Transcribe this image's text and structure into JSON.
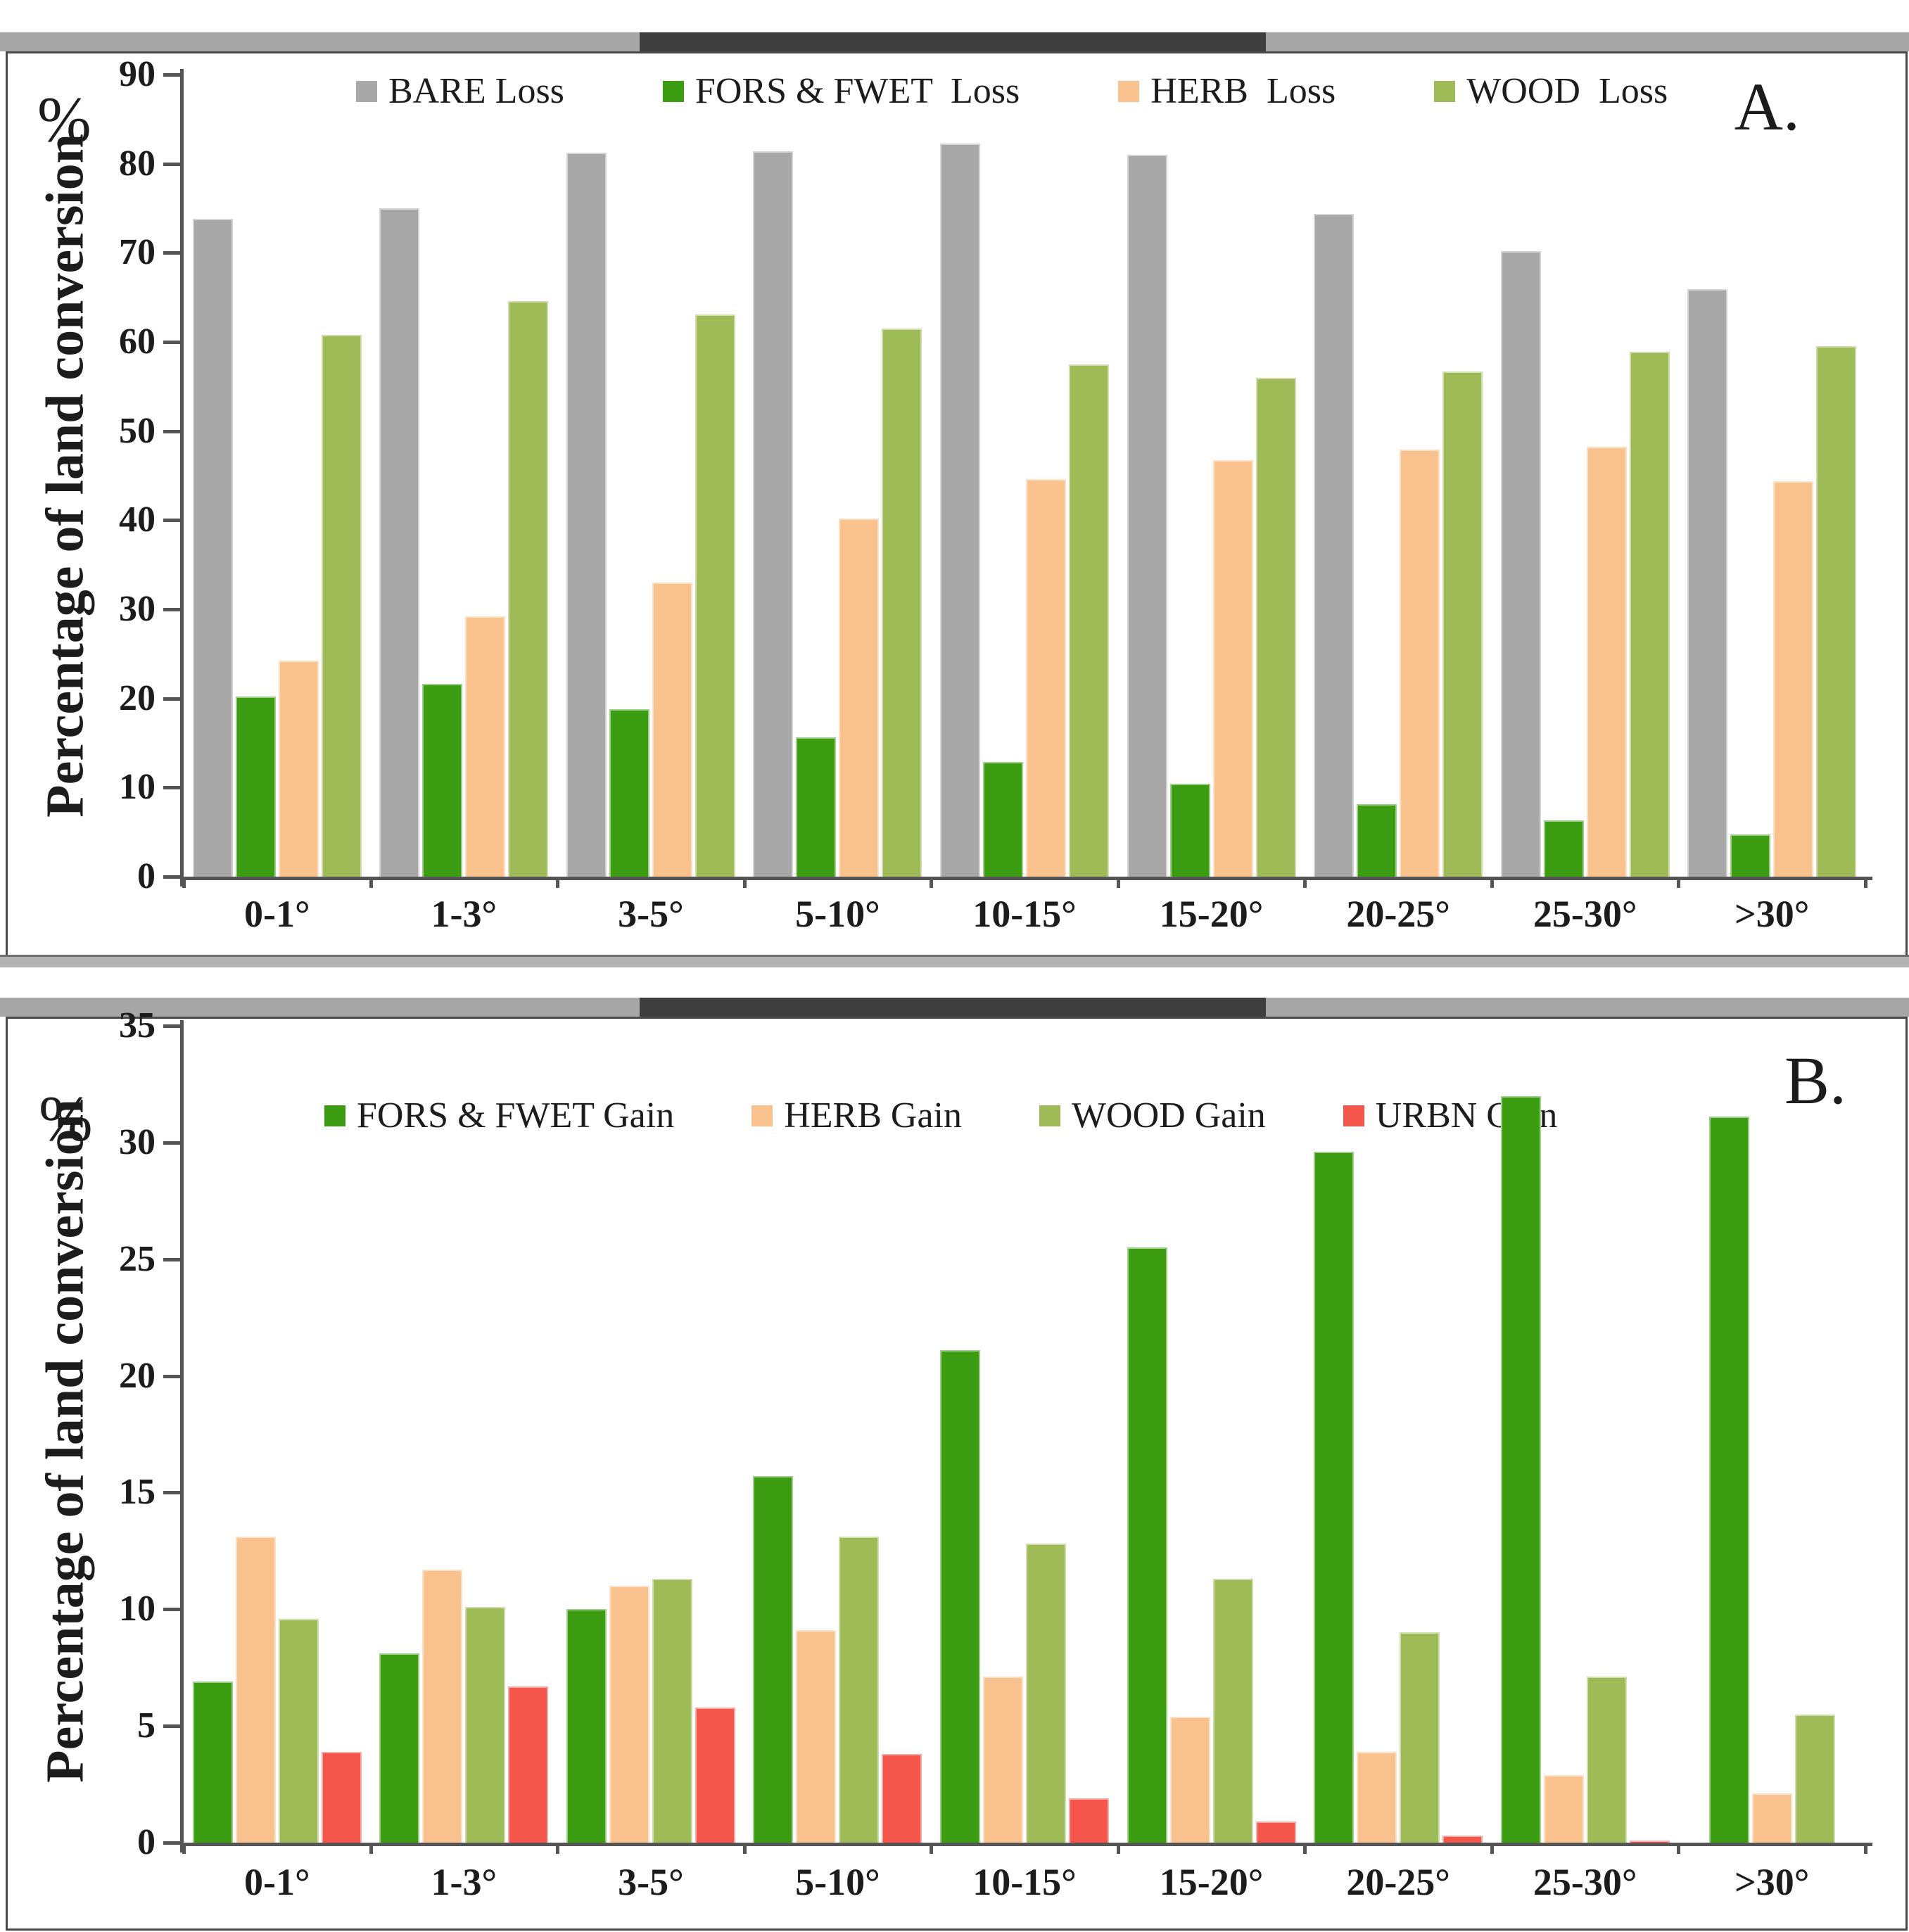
{
  "chart_data": [
    {
      "id": "A",
      "panel_label": "A.",
      "type": "bar",
      "y_unit": "%",
      "ylabel": "Percentage of land conversion",
      "ylim": [
        0,
        90
      ],
      "yticks": [
        0,
        10,
        20,
        30,
        40,
        50,
        60,
        70,
        80,
        90
      ],
      "categories": [
        "0-1°",
        "1-3°",
        "3-5°",
        "5-10°",
        "10-15°",
        "15-20°",
        "20-25°",
        "25-30°",
        ">30°"
      ],
      "legend_position": "top",
      "grid": false,
      "series": [
        {
          "name": "BARE Loss",
          "color": "#a8a8a8",
          "values": [
            73.8,
            75.0,
            81.2,
            81.4,
            82.3,
            81.0,
            74.4,
            70.2,
            65.9
          ]
        },
        {
          "name": "FORS & FWET  Loss",
          "color": "#3d9d12",
          "values": [
            20.2,
            21.6,
            18.8,
            15.6,
            12.9,
            10.4,
            8.1,
            6.3,
            4.7
          ]
        },
        {
          "name": "HERB  Loss",
          "color": "#f9c28e",
          "values": [
            24.2,
            29.2,
            33.0,
            40.2,
            44.6,
            46.7,
            47.9,
            48.2,
            44.4
          ]
        },
        {
          "name": "WOOD  Loss",
          "color": "#9ebb58",
          "values": [
            60.8,
            64.6,
            63.1,
            61.5,
            57.5,
            56.0,
            56.7,
            58.9,
            59.5
          ]
        }
      ]
    },
    {
      "id": "B",
      "panel_label": "B.",
      "type": "bar",
      "y_unit": "%",
      "ylabel": "Percentage of land conversion",
      "ylim": [
        0,
        35
      ],
      "yticks": [
        0,
        5,
        10,
        15,
        20,
        25,
        30,
        35
      ],
      "categories": [
        "0-1°",
        "1-3°",
        "3-5°",
        "5-10°",
        "10-15°",
        "15-20°",
        "20-25°",
        "25-30°",
        ">30°"
      ],
      "legend_position": "top",
      "grid": false,
      "series": [
        {
          "name": "FORS & FWET Gain",
          "color": "#3d9d12",
          "values": [
            6.9,
            8.1,
            10.0,
            15.7,
            21.1,
            25.5,
            29.6,
            32.0,
            31.1
          ]
        },
        {
          "name": "HERB Gain",
          "color": "#f9c28e",
          "values": [
            13.1,
            11.7,
            11.0,
            9.1,
            7.1,
            5.4,
            3.9,
            2.9,
            2.1
          ]
        },
        {
          "name": "WOOD Gain",
          "color": "#9ebb58",
          "values": [
            9.6,
            10.1,
            11.3,
            13.1,
            12.8,
            11.3,
            9.0,
            7.1,
            5.5
          ]
        },
        {
          "name": "URBN Gain",
          "color": "#f4564c",
          "values": [
            3.9,
            6.7,
            5.8,
            3.8,
            1.9,
            0.9,
            0.3,
            0.1,
            0.0
          ]
        }
      ]
    }
  ]
}
